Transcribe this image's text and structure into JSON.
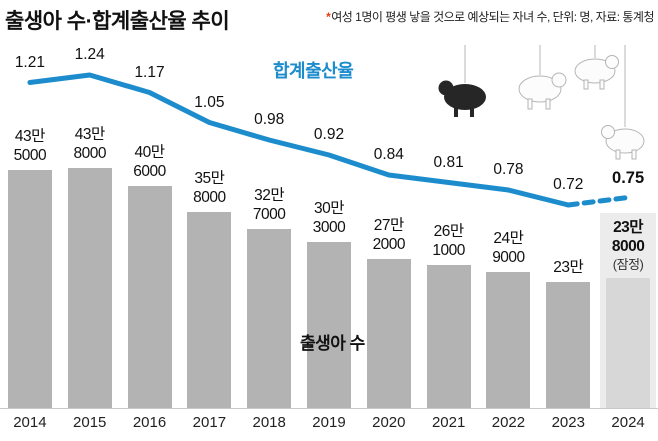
{
  "header": {
    "title": "출생아 수·합계출산율 추이",
    "note_star": "*",
    "note": "여성 1명이 평생 낳을 것으로 예상되는 자녀 수, 단위: 명, 자료: 통계청"
  },
  "labels": {
    "fertility": "합계출산율",
    "births": "출생아 수",
    "provisional": "(잠정)"
  },
  "colors": {
    "line": "#1d8ccc",
    "bar": "#b3b3b3",
    "bar_last": "#d7d7d7",
    "highlight_bg": "#ececec",
    "note_star": "#e8380d"
  },
  "chart_data": {
    "type": "bar+line",
    "title": "출생아 수·합계출산율 추이",
    "categories": [
      "2014",
      "2015",
      "2016",
      "2017",
      "2018",
      "2019",
      "2020",
      "2021",
      "2022",
      "2023",
      "2024"
    ],
    "series": [
      {
        "name": "출생아 수",
        "type": "bar",
        "values": [
          435000,
          438000,
          406000,
          358000,
          327000,
          303000,
          272000,
          261000,
          249000,
          230000,
          238000
        ],
        "value_labels": [
          [
            "43만",
            "5000"
          ],
          [
            "43만",
            "8000"
          ],
          [
            "40만",
            "6000"
          ],
          [
            "35만",
            "8000"
          ],
          [
            "32만",
            "7000"
          ],
          [
            "30만",
            "3000"
          ],
          [
            "27만",
            "2000"
          ],
          [
            "26만",
            "1000"
          ],
          [
            "24만",
            "9000"
          ],
          [
            "23만"
          ],
          [
            "23만",
            "8000"
          ]
        ]
      },
      {
        "name": "합계출산율",
        "type": "line",
        "values": [
          1.21,
          1.24,
          1.17,
          1.05,
          0.98,
          0.92,
          0.84,
          0.81,
          0.78,
          0.72,
          0.75
        ],
        "value_labels": [
          "1.21",
          "1.24",
          "1.17",
          "1.05",
          "0.98",
          "0.92",
          "0.84",
          "0.81",
          "0.78",
          "0.72",
          "0.75"
        ],
        "last_segment_dashed": true
      }
    ],
    "last_point_provisional": true,
    "grid": false,
    "legend_position": "inline-labels"
  }
}
